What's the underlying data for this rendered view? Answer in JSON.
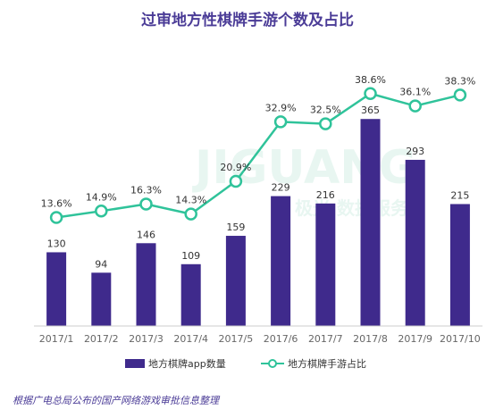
{
  "chart_data": {
    "type": "bar",
    "title": "过审地方性棋牌手游个数及占比",
    "categories": [
      "2017/1",
      "2017/2",
      "2017/3",
      "2017/4",
      "2017/5",
      "2017/6",
      "2017/7",
      "2017/8",
      "2017/9",
      "2017/10"
    ],
    "series": [
      {
        "name": "地方棋牌app数量",
        "type": "bar",
        "values": [
          130,
          94,
          146,
          109,
          159,
          229,
          216,
          365,
          293,
          215
        ]
      },
      {
        "name": "地方棋牌手游占比",
        "type": "line",
        "values": [
          13.6,
          14.9,
          16.3,
          14.3,
          20.9,
          32.9,
          32.5,
          38.6,
          36.1,
          38.3
        ],
        "unit": "%"
      }
    ],
    "legend_position": "bottom-right",
    "grid": false
  },
  "watermark": {
    "text_main": "JIGUANG",
    "text_sub": "极光 数据服务"
  },
  "source": "根据广电总局公布的国产网络游戏审批信息整理",
  "colors": {
    "bar": "#3f2a8c",
    "line": "#2fc39a",
    "title": "#4b3c97",
    "source": "#4b3c97"
  },
  "icons": {
    "bar_legend": "bar-swatch-icon",
    "line_legend": "line-marker-icon"
  }
}
